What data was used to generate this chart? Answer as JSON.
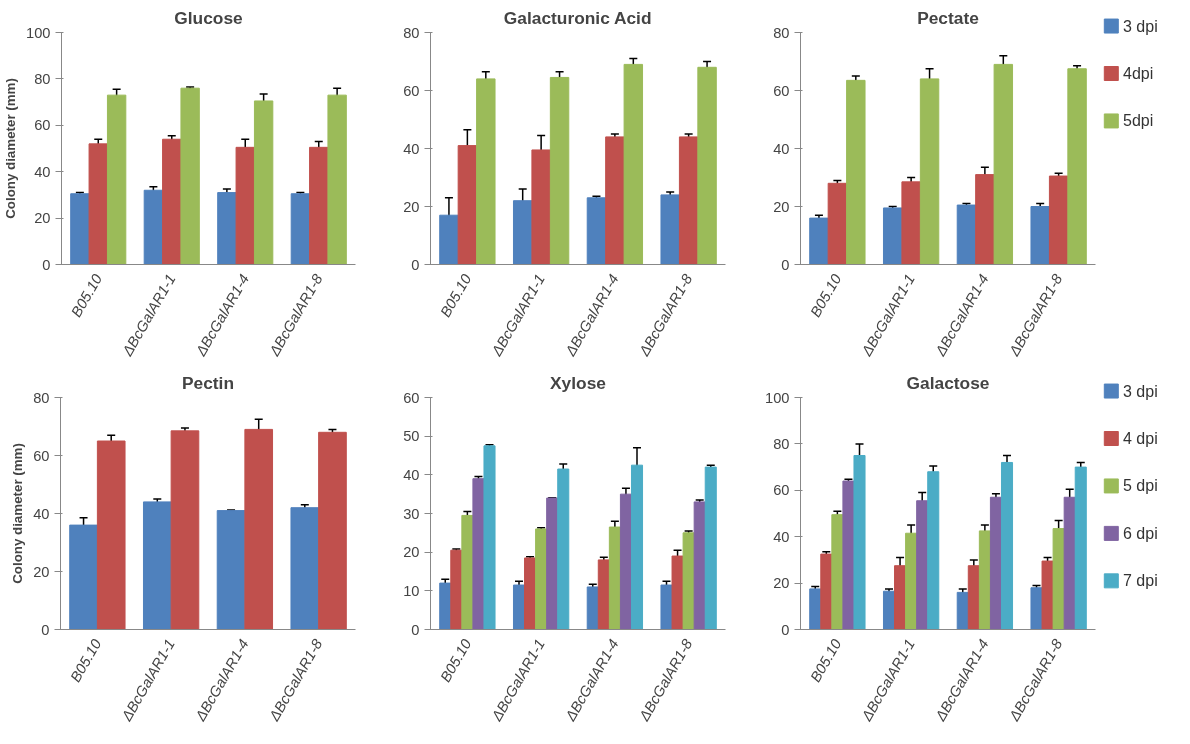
{
  "chart_data": [
    {
      "type": "bar",
      "title": "Glucose",
      "ylabel": "Colony diameter (mm)",
      "categories": [
        "B05.10",
        "ΔBcGalAR1-1",
        "ΔBcGalAR1-4",
        "ΔBcGalAR1-8"
      ],
      "ylim": [
        0,
        100
      ],
      "yticks": [
        0,
        20,
        40,
        60,
        80,
        100
      ],
      "grid": false,
      "series": [
        {
          "color": "#4f81bd",
          "values": [
            30.5,
            32,
            31,
            30.5
          ],
          "errors": [
            0.5,
            1.5,
            1.5,
            0.5
          ]
        },
        {
          "color": "#c0504d",
          "values": [
            52,
            54,
            50.5,
            50.5
          ],
          "errors": [
            2,
            1.5,
            3.5,
            2.5
          ]
        },
        {
          "color": "#9bbb59",
          "values": [
            73,
            76,
            70.5,
            73
          ],
          "errors": [
            2.5,
            0.5,
            3,
            3
          ]
        }
      ]
    },
    {
      "type": "bar",
      "title": "Galacturonic Acid",
      "categories": [
        "B05.10",
        "ΔBcGalAR1-1",
        "ΔBcGalAR1-4",
        "ΔBcGalAR1-8"
      ],
      "ylim": [
        0,
        80
      ],
      "yticks": [
        0,
        20,
        40,
        60,
        80
      ],
      "grid": false,
      "series": [
        {
          "color": "#4f81bd",
          "values": [
            17,
            22,
            23,
            24
          ],
          "errors": [
            6,
            4,
            0.5,
            1
          ]
        },
        {
          "color": "#c0504d",
          "values": [
            41,
            39.5,
            44,
            44
          ],
          "errors": [
            5.5,
            5,
            1,
            1
          ]
        },
        {
          "color": "#9bbb59",
          "values": [
            64,
            64.5,
            69,
            68
          ],
          "errors": [
            2.5,
            2,
            2,
            2
          ]
        }
      ]
    },
    {
      "type": "bar",
      "title": "Pectate",
      "categories": [
        "B05.10",
        "ΔBcGalAR1-1",
        "ΔBcGalAR1-4",
        "ΔBcGalAR1-8"
      ],
      "ylim": [
        0,
        80
      ],
      "yticks": [
        0,
        20,
        40,
        60,
        80
      ],
      "grid": false,
      "legend": "right",
      "series": [
        {
          "name": "3 dpi",
          "color": "#4f81bd",
          "values": [
            16,
            19.5,
            20.5,
            20
          ],
          "errors": [
            1,
            0.5,
            0.5,
            1
          ]
        },
        {
          "name": "4dpi",
          "color": "#c0504d",
          "values": [
            28,
            28.5,
            31,
            30.5
          ],
          "errors": [
            1,
            1.5,
            2.5,
            1
          ]
        },
        {
          "name": "5dpi",
          "color": "#9bbb59",
          "values": [
            63.5,
            64,
            69,
            67.5
          ],
          "errors": [
            1.5,
            3.5,
            3,
            1
          ]
        }
      ]
    },
    {
      "type": "bar",
      "title": "Pectin",
      "ylabel": "Colony diameter (mm)",
      "categories": [
        "B05.10",
        "ΔBcGalAR1-1",
        "ΔBcGalAR1-4",
        "ΔBcGalAR1-8"
      ],
      "ylim": [
        0,
        80
      ],
      "yticks": [
        0,
        20,
        40,
        60,
        80
      ],
      "grid": false,
      "series": [
        {
          "color": "#4f81bd",
          "values": [
            36,
            44,
            41,
            42
          ],
          "errors": [
            2.5,
            1,
            0.2,
            1
          ]
        },
        {
          "color": "#c0504d",
          "values": [
            65,
            68.5,
            69,
            68
          ],
          "errors": [
            2,
            1,
            3.5,
            1
          ]
        }
      ]
    },
    {
      "type": "bar",
      "title": "Xylose",
      "categories": [
        "B05.10",
        "ΔBcGalAR1-1",
        "ΔBcGalAR1-4",
        "ΔBcGalAR1-8"
      ],
      "ylim": [
        0,
        60
      ],
      "yticks": [
        0,
        10,
        20,
        30,
        40,
        50,
        60
      ],
      "grid": false,
      "series": [
        {
          "color": "#4f81bd",
          "values": [
            12,
            11.5,
            11,
            11.5
          ],
          "errors": [
            1,
            1,
            0.7,
            1
          ]
        },
        {
          "color": "#c0504d",
          "values": [
            20.5,
            18.5,
            18,
            19
          ],
          "errors": [
            0.3,
            0.3,
            0.7,
            1.5
          ]
        },
        {
          "color": "#9bbb59",
          "values": [
            29.5,
            26,
            26.5,
            25
          ],
          "errors": [
            1,
            0.3,
            1.5,
            0.5
          ]
        },
        {
          "color": "#8064a2",
          "values": [
            39,
            34,
            35,
            33
          ],
          "errors": [
            0.6,
            0.1,
            1.5,
            0.5
          ]
        },
        {
          "color": "#4bacc6",
          "values": [
            47.5,
            41.5,
            42.5,
            42
          ],
          "errors": [
            0.3,
            1.3,
            4.5,
            0.5
          ]
        }
      ]
    },
    {
      "type": "bar",
      "title": "Galactose",
      "categories": [
        "B05.10",
        "ΔBcGalAR1-1",
        "ΔBcGalAR1-4",
        "ΔBcGalAR1-8"
      ],
      "ylim": [
        0,
        100
      ],
      "yticks": [
        0,
        20,
        40,
        60,
        80,
        100
      ],
      "grid": false,
      "legend": "right",
      "series": [
        {
          "name": "3 dpi",
          "color": "#4f81bd",
          "values": [
            17.5,
            16.5,
            16,
            18
          ],
          "errors": [
            1,
            1,
            1.5,
            1
          ]
        },
        {
          "name": "4 dpi",
          "color": "#c0504d",
          "values": [
            32.5,
            27.5,
            27.5,
            29.5
          ],
          "errors": [
            1,
            3.5,
            2.5,
            1.5
          ]
        },
        {
          "name": "5 dpi",
          "color": "#9bbb59",
          "values": [
            49.5,
            41.5,
            42.5,
            43.5
          ],
          "errors": [
            1.5,
            3.5,
            2.5,
            3.5
          ]
        },
        {
          "name": "6 dpi",
          "color": "#8064a2",
          "values": [
            64,
            55.5,
            57,
            57
          ],
          "errors": [
            0.8,
            3.5,
            1.5,
            3.5
          ]
        },
        {
          "name": "7 dpi",
          "color": "#4bacc6",
          "values": [
            75,
            68,
            72,
            70
          ],
          "errors": [
            5,
            2.5,
            3,
            2
          ]
        }
      ]
    }
  ]
}
